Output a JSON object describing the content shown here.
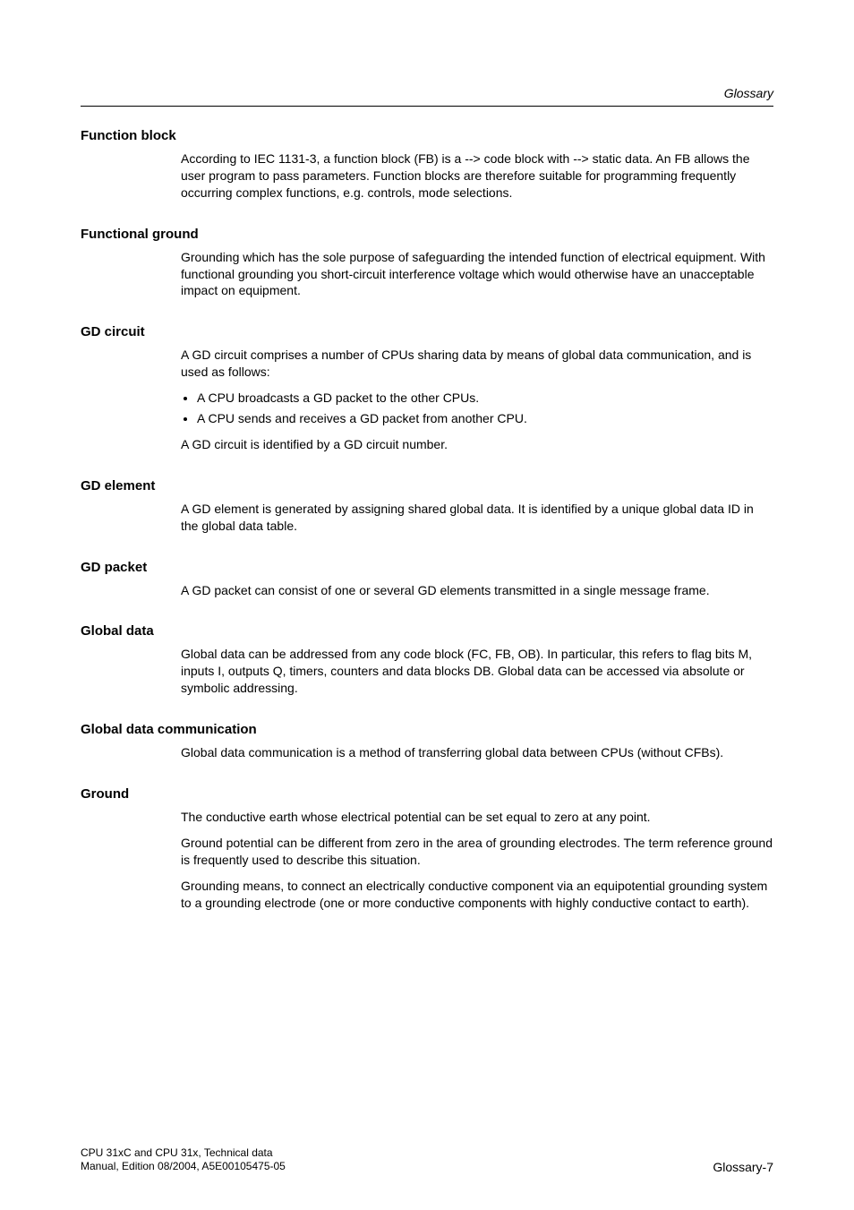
{
  "header": {
    "section": "Glossary"
  },
  "terms": [
    {
      "title": "Function block",
      "paragraphs": [
        "According to IEC 1131-3, a function block (FB) is a --> code block with --> static data. An FB allows the user program to pass parameters. Function blocks are therefore suitable for programming frequently occurring complex functions, e.g. controls, mode selections."
      ]
    },
    {
      "title": "Functional ground",
      "paragraphs": [
        "Grounding which has the sole purpose of safeguarding the intended function of electrical equipment. With functional grounding you short-circuit interference voltage which would otherwise have an unacceptable impact on equipment."
      ]
    },
    {
      "title": "GD circuit",
      "paragraphs": [
        "A GD circuit comprises a number of CPUs sharing data by means of global data communication, and is used as follows:"
      ],
      "bullets": [
        "A CPU broadcasts a GD packet to the other CPUs.",
        "A CPU sends and receives a GD packet from another CPU."
      ],
      "paragraphs_after": [
        "A GD circuit is identified by a GD circuit number."
      ]
    },
    {
      "title": "GD element",
      "paragraphs": [
        "A GD element is generated by assigning shared global data. It is identified by a unique global data ID in the global data table."
      ]
    },
    {
      "title": "GD packet",
      "paragraphs": [
        "A GD packet can consist of one or several GD elements transmitted in a single message frame."
      ]
    },
    {
      "title": "Global data",
      "paragraphs": [
        "Global data can be addressed from any code block (FC, FB, OB). In particular, this refers to flag bits M, inputs I, outputs Q, timers, counters and data blocks DB. Global data can be accessed via absolute or symbolic addressing."
      ]
    },
    {
      "title": "Global data communication",
      "paragraphs": [
        "Global data communication is a method of transferring global data between CPUs (without CFBs)."
      ]
    },
    {
      "title": "Ground",
      "paragraphs": [
        "The conductive earth whose electrical potential can be set equal to zero at any point.",
        "Ground potential can be different from zero in the area of grounding electrodes. The term reference ground is frequently used to describe this situation.",
        "Grounding means, to connect an electrically conductive component via an equipotential grounding system to a grounding electrode (one or more conductive components with highly conductive contact to earth)."
      ]
    }
  ],
  "footer": {
    "line1": "CPU 31xC and CPU 31x, Technical data",
    "line2": "Manual, Edition 08/2004, A5E00105475-05",
    "page": "Glossary-7"
  }
}
